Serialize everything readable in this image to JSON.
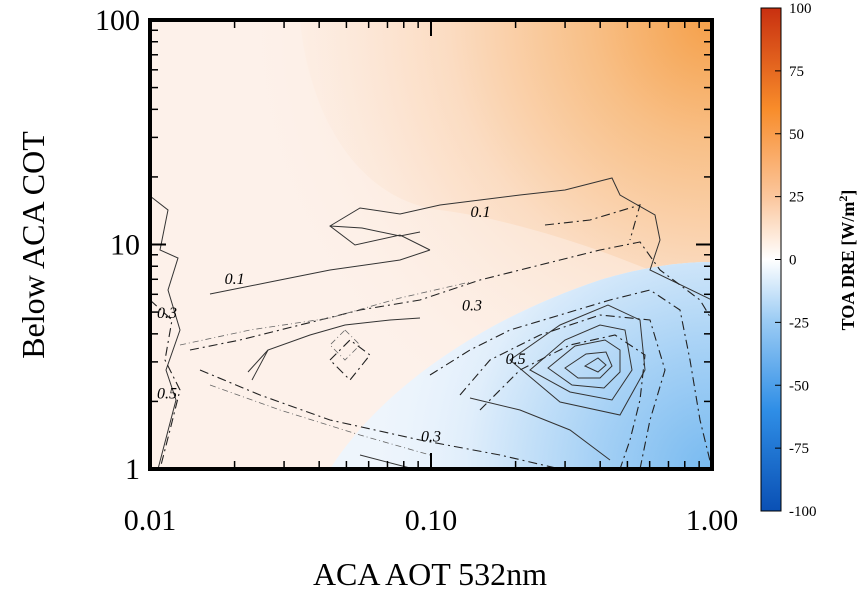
{
  "chart_data": {
    "type": "contour",
    "xlabel": "ACA AOT 532nm",
    "ylabel": "Below ACA COT",
    "x_scale": "log",
    "y_scale": "log",
    "xlim": [
      0.01,
      1.0
    ],
    "ylim": [
      1,
      100
    ],
    "x_ticks": [
      {
        "value": 0.01,
        "label": "0.01"
      },
      {
        "value": 0.1,
        "label": "0.10"
      },
      {
        "value": 1.0,
        "label": "1.00"
      }
    ],
    "y_ticks": [
      {
        "value": 1,
        "label": "1"
      },
      {
        "value": 10,
        "label": "10"
      },
      {
        "value": 100,
        "label": "100"
      }
    ],
    "colorbar": {
      "label": "TOA DRE [W/m",
      "label_sup": "2",
      "label_end": "]",
      "range": [
        -100,
        100
      ],
      "ticks": [
        {
          "value": 100,
          "label": "100"
        },
        {
          "value": 75,
          "label": "75"
        },
        {
          "value": 50,
          "label": "50"
        },
        {
          "value": 25,
          "label": "25"
        },
        {
          "value": 0,
          "label": "0"
        },
        {
          "value": -25,
          "label": "-25"
        },
        {
          "value": -50,
          "label": "-50"
        },
        {
          "value": -75,
          "label": "-75"
        },
        {
          "value": -100,
          "label": "-100"
        }
      ],
      "colors": [
        "#0a50b4",
        "#2f8ee6",
        "#9cccf4",
        "#ffffff",
        "#fbc8a0",
        "#f88c2a",
        "#c83010"
      ]
    },
    "contour_labels": [
      {
        "text": "0.1",
        "x": 0.15,
        "y": 13.5
      },
      {
        "text": "0.1",
        "x": 0.02,
        "y": 6.8
      },
      {
        "text": "0.3",
        "x": 0.14,
        "y": 5.2
      },
      {
        "text": "0.3",
        "x": 0.0115,
        "y": 4.8
      },
      {
        "text": "0.5",
        "x": 0.2,
        "y": 3.0
      },
      {
        "text": "0.5",
        "x": 0.0115,
        "y": 2.1
      },
      {
        "text": "0.3",
        "x": 0.1,
        "y": 1.35
      }
    ]
  }
}
